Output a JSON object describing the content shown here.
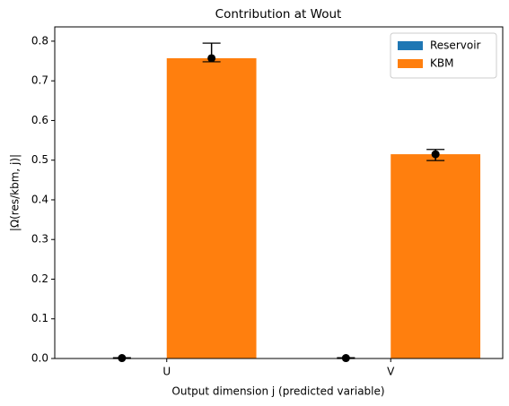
{
  "chart_data": {
    "type": "bar",
    "title": "Contribution at Wout",
    "xlabel": "Output dimension j (predicted variable)",
    "ylabel": "|Ω(res/kbm, j)|",
    "categories": [
      "U",
      "V"
    ],
    "series": [
      {
        "name": "Reservoir",
        "color": "#1f77b4",
        "values": [
          0.001,
          0.001
        ],
        "error_minus": [
          0.001,
          0.001
        ],
        "error_plus": [
          0.001,
          0.001
        ]
      },
      {
        "name": "KBM",
        "color": "#ff7f0e",
        "values": [
          0.757,
          0.515
        ],
        "error_minus": [
          0.009,
          0.016
        ],
        "error_plus": [
          0.038,
          0.012
        ]
      }
    ],
    "ylim": [
      0,
      0.836
    ],
    "yticks": [
      {
        "value": 0,
        "label": "0.0"
      },
      0.1,
      0.2,
      0.3,
      0.4,
      0.5,
      0.6,
      0.7,
      0.8
    ],
    "legend": "upper right"
  }
}
